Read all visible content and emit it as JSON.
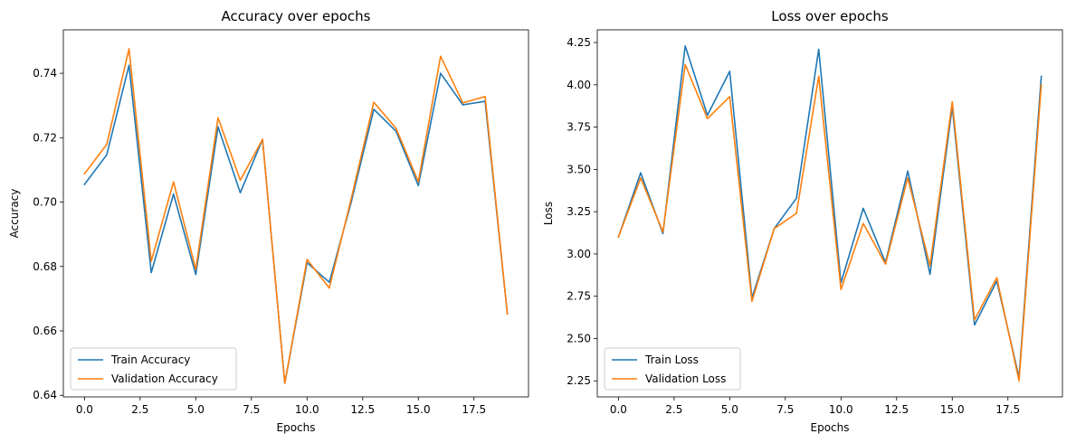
{
  "chart_data": [
    {
      "type": "line",
      "title": "Accuracy over epochs",
      "xlabel": "Epochs",
      "ylabel": "Accuracy",
      "xlim": [
        -0.95,
        19.95
      ],
      "ylim": [
        0.6395,
        0.7535
      ],
      "xticks": [
        0.0,
        2.5,
        5.0,
        7.5,
        10.0,
        12.5,
        15.0,
        17.5
      ],
      "xtick_labels": [
        "0.0",
        "2.5",
        "5.0",
        "7.5",
        "10.0",
        "12.5",
        "15.0",
        "17.5"
      ],
      "yticks": [
        0.64,
        0.66,
        0.68,
        0.7,
        0.72,
        0.74
      ],
      "ytick_labels": [
        "0.64",
        "0.66",
        "0.68",
        "0.70",
        "0.72",
        "0.74"
      ],
      "grid": false,
      "legend_position": "lower-left",
      "x": [
        0,
        1,
        2,
        3,
        4,
        5,
        6,
        7,
        8,
        9,
        10,
        11,
        12,
        13,
        14,
        15,
        16,
        17,
        18,
        19
      ],
      "series": [
        {
          "name": "Train Accuracy",
          "color": "#1f77b4",
          "values": [
            0.7055,
            0.7147,
            0.7425,
            0.6781,
            0.7025,
            0.6775,
            0.7234,
            0.7029,
            0.7195,
            0.6437,
            0.6812,
            0.6751,
            0.7004,
            0.7288,
            0.722,
            0.7051,
            0.74,
            0.7302,
            0.7313,
            0.6653
          ]
        },
        {
          "name": "Validation Accuracy",
          "color": "#ff7f0e",
          "values": [
            0.7088,
            0.7179,
            0.7476,
            0.6816,
            0.7063,
            0.6791,
            0.7262,
            0.7068,
            0.7195,
            0.6437,
            0.6822,
            0.6733,
            0.7015,
            0.731,
            0.7229,
            0.7063,
            0.7453,
            0.7308,
            0.7328,
            0.6653
          ]
        }
      ]
    },
    {
      "type": "line",
      "title": "Loss over epochs",
      "xlabel": "Epochs",
      "ylabel": "Loss",
      "xlim": [
        -0.95,
        19.95
      ],
      "ylim": [
        2.155,
        4.325
      ],
      "xticks": [
        0.0,
        2.5,
        5.0,
        7.5,
        10.0,
        12.5,
        15.0,
        17.5
      ],
      "xtick_labels": [
        "0.0",
        "2.5",
        "5.0",
        "7.5",
        "10.0",
        "12.5",
        "15.0",
        "17.5"
      ],
      "yticks": [
        2.25,
        2.5,
        2.75,
        3.0,
        3.25,
        3.5,
        3.75,
        4.0,
        4.25
      ],
      "ytick_labels": [
        "2.25",
        "2.50",
        "2.75",
        "3.00",
        "3.25",
        "3.50",
        "3.75",
        "4.00",
        "4.25"
      ],
      "grid": false,
      "legend_position": "lower-left",
      "x": [
        0,
        1,
        2,
        3,
        4,
        5,
        6,
        7,
        8,
        9,
        10,
        11,
        12,
        13,
        14,
        15,
        16,
        17,
        18,
        19
      ],
      "series": [
        {
          "name": "Train Loss",
          "color": "#1f77b4",
          "values": [
            3.1,
            3.48,
            3.12,
            4.23,
            3.82,
            4.08,
            2.74,
            3.15,
            3.33,
            4.21,
            2.83,
            3.27,
            2.95,
            3.49,
            2.88,
            3.87,
            2.58,
            2.84,
            2.27,
            4.05
          ]
        },
        {
          "name": "Validation Loss",
          "color": "#ff7f0e",
          "values": [
            3.1,
            3.45,
            3.13,
            4.12,
            3.8,
            3.93,
            2.72,
            3.15,
            3.24,
            4.05,
            2.79,
            3.18,
            2.94,
            3.45,
            2.93,
            3.9,
            2.61,
            2.86,
            2.25,
            4.0
          ]
        }
      ]
    }
  ]
}
